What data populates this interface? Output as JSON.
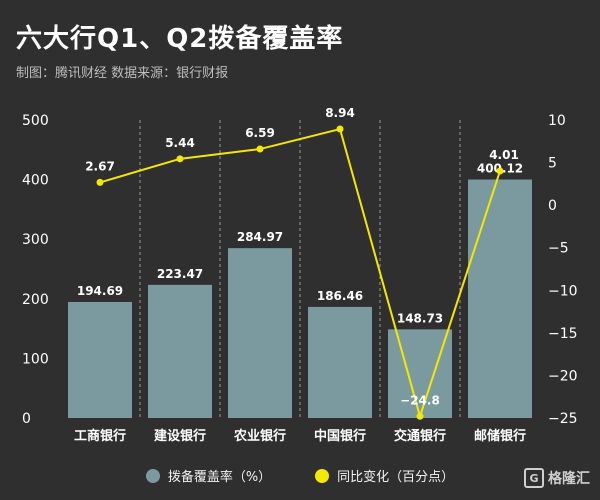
{
  "header": {
    "title": "六大行Q1、Q2拨备覆盖率",
    "subtitle": "制图：腾讯财经  数据来源：银行财报"
  },
  "chart_data": {
    "type": "bar",
    "categories": [
      "工商银行",
      "建设银行",
      "农业银行",
      "中国银行",
      "交通银行",
      "邮储银行"
    ],
    "series": [
      {
        "name": "拨备覆盖率（%）",
        "type": "bar",
        "axis": "left",
        "color": "#7b9aa0",
        "values": [
          194.69,
          223.47,
          284.97,
          186.46,
          148.73,
          400.12
        ],
        "labels": [
          "194.69",
          "223.47",
          "284.97",
          "186.46",
          "148.73",
          "400.12"
        ]
      },
      {
        "name": "同比变化（百分点）",
        "type": "line",
        "axis": "right",
        "color": "#f5e800",
        "values": [
          2.67,
          5.44,
          6.59,
          8.94,
          -24.8,
          4.01
        ],
        "labels": [
          "2.67",
          "5.44",
          "6.59",
          "8.94",
          "−24.8",
          "4.01"
        ]
      }
    ],
    "y_left": {
      "min": 0,
      "max": 500,
      "ticks": [
        "0",
        "100",
        "200",
        "300",
        "400",
        "500"
      ]
    },
    "y_right": {
      "min": -25,
      "max": 10,
      "ticks": [
        "10",
        "5",
        "0",
        "−5",
        "−10",
        "−15",
        "−20",
        "−25"
      ]
    },
    "grid": "vertical-dashed",
    "legend": "bottom"
  },
  "legend": {
    "bar_label": "拨备覆盖率（%）",
    "line_label": "同比变化（百分点）"
  },
  "watermark": {
    "icon": "G",
    "text": "格隆汇"
  }
}
